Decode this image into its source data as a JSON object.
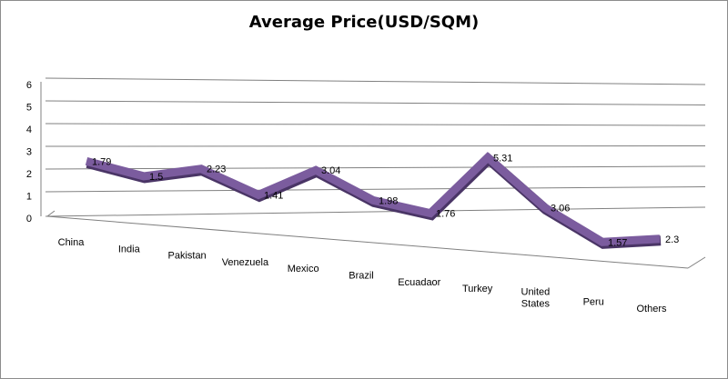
{
  "chart_data": {
    "type": "line",
    "title": "Average Price(USD/SQM)",
    "xlabel": "",
    "ylabel": "",
    "categories": [
      "China",
      "India",
      "Pakistan",
      "Venezuela",
      "Mexico",
      "Brazil",
      "Ecuadaor",
      "Turkey",
      "United States",
      "Peru",
      "Others"
    ],
    "series": [
      {
        "values": [
          1.79,
          1.5,
          2.23,
          1.41,
          3.04,
          1.98,
          1.76,
          5.31,
          3.06,
          1.57,
          2.3
        ],
        "data_labels": [
          "1.79",
          "1.5",
          "2.23",
          "1.41",
          "3.04",
          "1.98",
          "1.76",
          "5.31",
          "3.06",
          "1.57",
          "2.3"
        ]
      }
    ],
    "ylim": [
      0,
      6
    ],
    "yticks": [
      "0",
      "1",
      "2",
      "3",
      "4",
      "5",
      "6"
    ],
    "grid": true,
    "legend": "none",
    "style": "3d-perspective",
    "line_color": "#7b5c9e",
    "grid_color": "#808080"
  }
}
